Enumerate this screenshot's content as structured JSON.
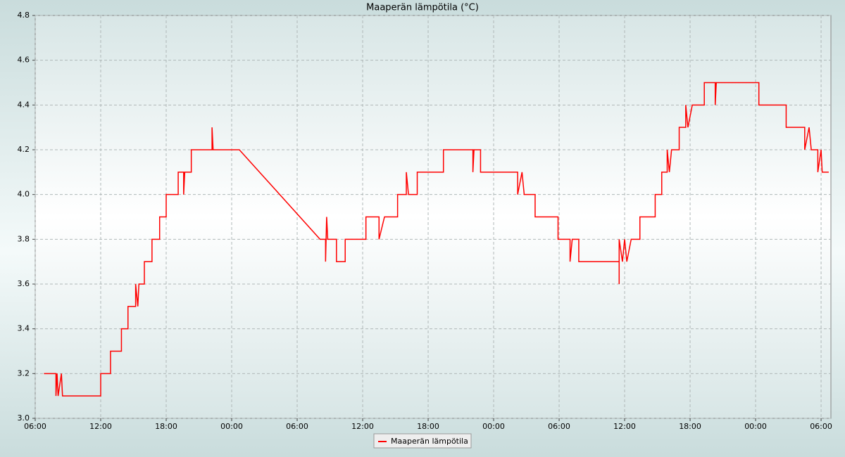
{
  "chart_data": {
    "type": "line",
    "title": "Maaperän lämpötila (°C)",
    "x": [
      0.8,
      1.9,
      1.9,
      2.0,
      2.1,
      2.4,
      2.5,
      6.0,
      6.0,
      6.9,
      6.9,
      7.9,
      7.9,
      8.5,
      8.5,
      9.2,
      9.2,
      9.4,
      9.5,
      10.0,
      10.0,
      10.7,
      10.7,
      11.4,
      11.4,
      12.0,
      12.0,
      13.1,
      13.1,
      13.6,
      13.6,
      13.7,
      14.3,
      14.3,
      16.2,
      16.2,
      16.3,
      18.7,
      26.1,
      26.6,
      26.6,
      26.7,
      26.8,
      27.6,
      27.6,
      28.4,
      28.4,
      30.3,
      30.3,
      31.5,
      31.5,
      32.0,
      33.2,
      33.2,
      34.0,
      34.0,
      34.2,
      35.0,
      35.0,
      37.4,
      37.4,
      40.1,
      40.1,
      40.2,
      40.8,
      40.8,
      44.2,
      44.2,
      44.6,
      44.8,
      45.8,
      45.8,
      47.9,
      47.9,
      49.0,
      49.0,
      49.2,
      49.8,
      49.8,
      53.5,
      53.5,
      53.5,
      53.8,
      54.0,
      54.2,
      54.6,
      55.4,
      55.4,
      56.8,
      56.8,
      57.4,
      57.4,
      57.9,
      57.9,
      58.1,
      58.3,
      59.0,
      59.0,
      59.6,
      59.6,
      59.8,
      60.2,
      61.3,
      61.3,
      62.3,
      62.3,
      62.4,
      66.3,
      66.3,
      68.8,
      68.8,
      70.5,
      70.5,
      70.9,
      71.1,
      71.7,
      71.7,
      72.0,
      72.1,
      72.7
    ],
    "series": [
      {
        "name": "Maaperän lämpötila",
        "color": "#ff0000",
        "values": [
          3.2,
          3.2,
          3.1,
          3.2,
          3.1,
          3.2,
          3.1,
          3.1,
          3.2,
          3.2,
          3.3,
          3.3,
          3.4,
          3.4,
          3.5,
          3.5,
          3.6,
          3.5,
          3.6,
          3.6,
          3.7,
          3.7,
          3.8,
          3.8,
          3.9,
          3.9,
          4.0,
          4.0,
          4.1,
          4.1,
          4.0,
          4.1,
          4.1,
          4.2,
          4.2,
          4.3,
          4.2,
          4.2,
          3.8,
          3.8,
          3.7,
          3.9,
          3.8,
          3.8,
          3.7,
          3.7,
          3.8,
          3.8,
          3.9,
          3.9,
          3.8,
          3.9,
          3.9,
          4.0,
          4.0,
          4.1,
          4.0,
          4.0,
          4.1,
          4.1,
          4.2,
          4.2,
          4.1,
          4.2,
          4.2,
          4.1,
          4.1,
          4.0,
          4.1,
          4.0,
          4.0,
          3.9,
          3.9,
          3.8,
          3.8,
          3.7,
          3.8,
          3.8,
          3.7,
          3.7,
          3.6,
          3.8,
          3.7,
          3.8,
          3.7,
          3.8,
          3.8,
          3.9,
          3.9,
          4.0,
          4.0,
          4.1,
          4.1,
          4.2,
          4.1,
          4.2,
          4.2,
          4.3,
          4.3,
          4.4,
          4.3,
          4.4,
          4.4,
          4.5,
          4.5,
          4.4,
          4.5,
          4.5,
          4.4,
          4.4,
          4.3,
          4.3,
          4.2,
          4.3,
          4.2,
          4.2,
          4.1,
          4.2,
          4.1,
          4.1
        ]
      }
    ],
    "xlim": [
      0,
      72.9
    ],
    "xticks": [
      {
        "value": 0,
        "label": "06:00"
      },
      {
        "value": 6,
        "label": "12:00"
      },
      {
        "value": 12,
        "label": "18:00"
      },
      {
        "value": 18,
        "label": "00:00"
      },
      {
        "value": 24,
        "label": "06:00"
      },
      {
        "value": 30,
        "label": "12:00"
      },
      {
        "value": 36,
        "label": "18:00"
      },
      {
        "value": 42,
        "label": "00:00"
      },
      {
        "value": 48,
        "label": "06:00"
      },
      {
        "value": 54,
        "label": "12:00"
      },
      {
        "value": 60,
        "label": "18:00"
      },
      {
        "value": 66,
        "label": "00:00"
      },
      {
        "value": 72,
        "label": "06:00"
      }
    ],
    "ylim": [
      3.0,
      4.8
    ],
    "yticks": [
      {
        "value": 3.0,
        "label": "3.0"
      },
      3.2,
      3.4,
      3.6,
      3.8,
      {
        "value": 4.0,
        "label": "4.0"
      },
      4.2,
      4.4,
      4.6,
      4.8
    ],
    "grid": true
  }
}
